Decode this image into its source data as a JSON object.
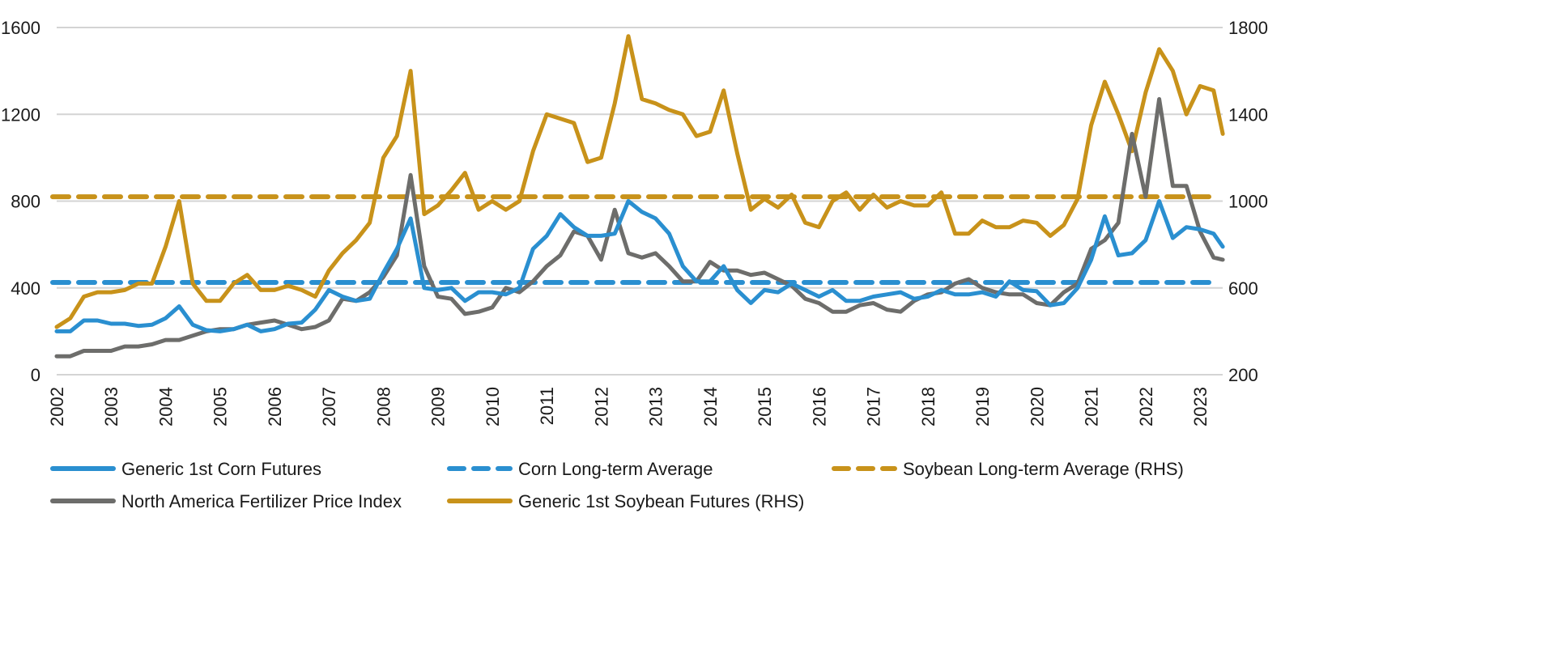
{
  "chart_data": {
    "type": "line",
    "title": "",
    "xlabel": "",
    "ylabel": "",
    "y2label": "",
    "x_ticks": [
      "2002",
      "2003",
      "2004",
      "2005",
      "2006",
      "2007",
      "2008",
      "2009",
      "2010",
      "2011",
      "2012",
      "2013",
      "2014",
      "2015",
      "2016",
      "2017",
      "2018",
      "2019",
      "2020",
      "2021",
      "2022",
      "2023"
    ],
    "ylim": [
      0,
      1600
    ],
    "y_ticks": [
      "0",
      "400",
      "800",
      "1200",
      "1600"
    ],
    "y2lim": [
      200,
      1800
    ],
    "y2_ticks": [
      "200",
      "600",
      "1000",
      "1400",
      "1800"
    ],
    "grid": "horizontal",
    "legend_position": "bottom",
    "x": [
      "2002-01",
      "2002-04",
      "2002-07",
      "2002-10",
      "2003-01",
      "2003-04",
      "2003-07",
      "2003-10",
      "2004-01",
      "2004-04",
      "2004-07",
      "2004-10",
      "2005-01",
      "2005-04",
      "2005-07",
      "2005-10",
      "2006-01",
      "2006-04",
      "2006-07",
      "2006-10",
      "2007-01",
      "2007-04",
      "2007-07",
      "2007-10",
      "2008-01",
      "2008-04",
      "2008-07",
      "2008-10",
      "2009-01",
      "2009-04",
      "2009-07",
      "2009-10",
      "2010-01",
      "2010-04",
      "2010-07",
      "2010-10",
      "2011-01",
      "2011-04",
      "2011-07",
      "2011-10",
      "2012-01",
      "2012-04",
      "2012-07",
      "2012-10",
      "2013-01",
      "2013-04",
      "2013-07",
      "2013-10",
      "2014-01",
      "2014-04",
      "2014-07",
      "2014-10",
      "2015-01",
      "2015-04",
      "2015-07",
      "2015-10",
      "2016-01",
      "2016-04",
      "2016-07",
      "2016-10",
      "2017-01",
      "2017-04",
      "2017-07",
      "2017-10",
      "2018-01",
      "2018-04",
      "2018-07",
      "2018-10",
      "2019-01",
      "2019-04",
      "2019-07",
      "2019-10",
      "2020-01",
      "2020-04",
      "2020-07",
      "2020-10",
      "2021-01",
      "2021-04",
      "2021-07",
      "2021-10",
      "2022-01",
      "2022-04",
      "2022-07",
      "2022-10",
      "2023-01",
      "2023-04",
      "2023-06"
    ],
    "series": [
      {
        "name": "Generic 1st Corn Futures",
        "axis": "left",
        "style": "solid",
        "color": "#2a8fd0",
        "values": [
          200,
          200,
          250,
          250,
          235,
          235,
          225,
          230,
          260,
          315,
          230,
          205,
          200,
          210,
          230,
          200,
          210,
          235,
          240,
          300,
          390,
          360,
          340,
          350,
          470,
          580,
          720,
          400,
          390,
          400,
          340,
          380,
          380,
          370,
          400,
          580,
          640,
          740,
          680,
          640,
          640,
          650,
          800,
          750,
          720,
          650,
          500,
          430,
          430,
          500,
          390,
          330,
          390,
          380,
          420,
          390,
          360,
          390,
          340,
          340,
          360,
          370,
          380,
          350,
          360,
          390,
          370,
          370,
          380,
          360,
          430,
          390,
          385,
          320,
          330,
          400,
          530,
          730,
          550,
          560,
          620,
          800,
          630,
          680,
          670,
          650,
          590
        ]
      },
      {
        "name": "Corn Long-term Average",
        "axis": "left",
        "style": "dashed",
        "color": "#2a8fd0",
        "constant": 425
      },
      {
        "name": "Soybean Long-term Average (RHS)",
        "axis": "right",
        "style": "dashed",
        "color": "#c8921a",
        "constant": 1020
      },
      {
        "name": "North America Fertilizer Price Index",
        "axis": "left",
        "style": "solid",
        "color": "#6d6d6b",
        "values": [
          85,
          85,
          110,
          110,
          110,
          130,
          130,
          140,
          160,
          160,
          180,
          200,
          210,
          210,
          230,
          240,
          250,
          230,
          210,
          220,
          250,
          350,
          340,
          380,
          450,
          550,
          920,
          500,
          360,
          350,
          280,
          290,
          310,
          400,
          380,
          430,
          500,
          550,
          660,
          640,
          530,
          760,
          560,
          540,
          560,
          500,
          430,
          430,
          520,
          480,
          480,
          460,
          470,
          440,
          410,
          350,
          330,
          290,
          290,
          320,
          330,
          300,
          290,
          340,
          370,
          380,
          420,
          440,
          400,
          380,
          370,
          370,
          330,
          320,
          380,
          420,
          580,
          620,
          700,
          1110,
          820,
          1270,
          870,
          870,
          660,
          540,
          530
        ]
      },
      {
        "name": "Generic 1st Soybean Futures (RHS)",
        "axis": "right",
        "style": "solid",
        "color": "#c8921a",
        "values": [
          420,
          460,
          560,
          580,
          580,
          590,
          620,
          620,
          790,
          1000,
          620,
          540,
          540,
          620,
          660,
          590,
          590,
          610,
          590,
          560,
          680,
          760,
          820,
          900,
          1200,
          1300,
          1600,
          940,
          980,
          1050,
          1130,
          960,
          1000,
          960,
          1000,
          1230,
          1400,
          1380,
          1360,
          1180,
          1200,
          1450,
          1760,
          1470,
          1450,
          1420,
          1400,
          1300,
          1320,
          1510,
          1220,
          960,
          1010,
          970,
          1030,
          900,
          880,
          1000,
          1040,
          960,
          1030,
          970,
          1000,
          980,
          980,
          1040,
          850,
          850,
          910,
          880,
          880,
          910,
          900,
          840,
          890,
          1010,
          1350,
          1550,
          1400,
          1230,
          1500,
          1700,
          1600,
          1400,
          1530,
          1510,
          1310
        ]
      }
    ]
  },
  "legend": [
    {
      "label": "Generic 1st Corn Futures"
    },
    {
      "label": "Corn Long-term Average"
    },
    {
      "label": "Soybean Long-term Average (RHS)"
    },
    {
      "label": "North America Fertilizer Price Index"
    },
    {
      "label": "Generic 1st Soybean Futures (RHS)"
    }
  ]
}
